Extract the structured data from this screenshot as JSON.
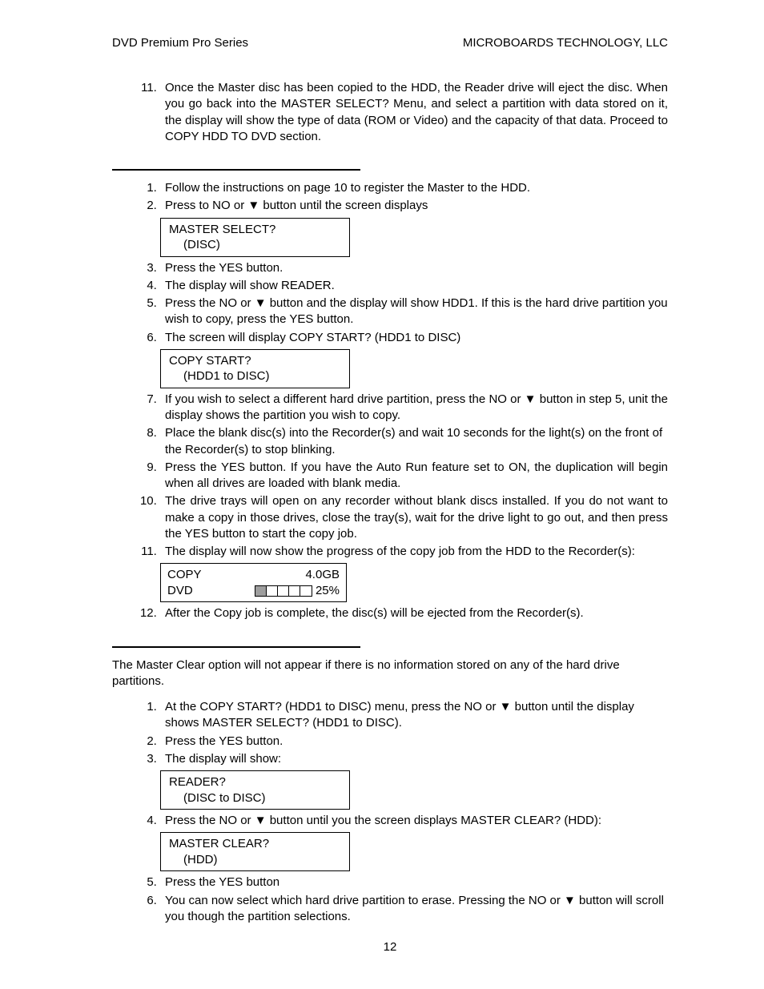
{
  "header": {
    "left": "DVD Premium Pro Series",
    "right": "MICROBOARDS TECHNOLOGY, LLC"
  },
  "section1": {
    "start": 11,
    "items": [
      "Once the Master disc has been copied to the HDD, the Reader drive will eject the disc. When you go back into the MASTER SELECT? Menu, and select a partition with data stored on it, the display will show the type of data (ROM or Video) and the capacity of that data. Proceed to COPY HDD TO DVD section."
    ]
  },
  "section2": {
    "items": [
      "Follow the instructions on page 10 to register the Master to the HDD.",
      "Press to NO or ▼ button until the screen displays",
      "Press the YES button.",
      "The display will show READER.",
      "Press the NO or ▼ button and the display will show HDD1.  If this is the hard drive partition you wish to copy, press the YES button.",
      "The screen will display COPY START? (HDD1 to DISC)",
      "If you wish to select a different hard drive partition, press the NO or ▼ button in step 5, unit the display shows the partition you wish to copy.",
      "Place the blank disc(s) into the Recorder(s) and wait 10 seconds for the light(s) on the front of the Recorder(s) to stop blinking.",
      "Press the YES button.  If you have the Auto Run feature set to ON, the duplication will begin when all drives are loaded with blank media.",
      "The drive trays will open on any recorder without blank discs installed.  If you do not want to make a copy in those drives, close the tray(s), wait for the drive light to go out, and then press the YES button to start the copy job.",
      "The display will now show the progress of the copy job from the HDD to the Recorder(s):",
      "After the Copy job is complete, the disc(s) will be ejected from the Recorder(s)."
    ],
    "lcd1": {
      "line1": "MASTER SELECT?",
      "line2": "(DISC)"
    },
    "lcd2": {
      "line1": "COPY START?",
      "line2": "(HDD1 to DISC)"
    },
    "lcd3": {
      "r1left": "COPY",
      "r1right": "4.0GB",
      "r2left": "DVD",
      "r2right": "25%",
      "segments": 5,
      "filled": 1
    }
  },
  "section3": {
    "intro": "The Master Clear option will not appear if there is no information stored on any of the hard drive partitions.",
    "items": [
      "At the COPY START? (HDD1 to DISC) menu, press the NO or ▼ button until the display shows MASTER SELECT? (HDD1 to DISC).",
      "Press the YES button.",
      "The display will show:",
      "Press the NO or ▼ button until you the screen displays MASTER CLEAR? (HDD):",
      "Press the YES button",
      "You can now select which hard drive partition to erase.  Pressing the NO or ▼ button will scroll you though the partition selections."
    ],
    "lcd1": {
      "line1": "READER?",
      "line2": "(DISC to DISC)"
    },
    "lcd2": {
      "line1": "MASTER CLEAR?",
      "line2": "(HDD)"
    }
  },
  "pageNumber": "12"
}
